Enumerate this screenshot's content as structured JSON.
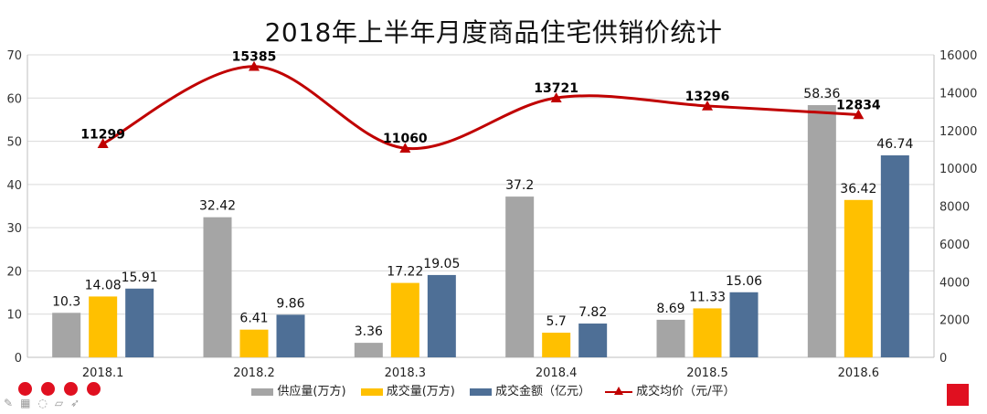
{
  "chart_data": {
    "type": "bar+line",
    "title": "2018年上半年月度商品住宅供销价统计",
    "categories": [
      "2018.1",
      "2018.2",
      "2018.3",
      "2018.4",
      "2018.5",
      "2018.6"
    ],
    "series": [
      {
        "name": "供应量(万方)",
        "type": "bar",
        "axis": "left",
        "color": "#a5a5a5",
        "values": [
          10.3,
          32.42,
          3.36,
          37.2,
          8.69,
          58.36
        ]
      },
      {
        "name": "成交量(万方)",
        "type": "bar",
        "axis": "left",
        "color": "#ffc000",
        "values": [
          14.08,
          6.41,
          17.22,
          5.7,
          11.33,
          36.42
        ]
      },
      {
        "name": "成交金额（亿元）",
        "type": "bar",
        "axis": "left",
        "color": "#4e6f96",
        "values": [
          15.91,
          9.86,
          19.05,
          7.82,
          15.06,
          46.74
        ]
      },
      {
        "name": "成交均价（元/平）",
        "type": "line",
        "axis": "right",
        "color": "#c00000",
        "values": [
          11299,
          15385,
          11060,
          13721,
          13296,
          12834
        ]
      }
    ],
    "ylim_left": [
      0,
      70
    ],
    "yticks_left": [
      0,
      10,
      20,
      30,
      40,
      50,
      60,
      70
    ],
    "ylim_right": [
      0,
      16000
    ],
    "yticks_right": [
      0,
      2000,
      4000,
      6000,
      8000,
      10000,
      12000,
      14000,
      16000
    ],
    "grid": true,
    "legend_position": "bottom"
  },
  "toolbar": {
    "icons": [
      "pen-icon",
      "grid-icon",
      "eraser-icon",
      "highlighter-icon",
      "cursor-icon"
    ]
  }
}
